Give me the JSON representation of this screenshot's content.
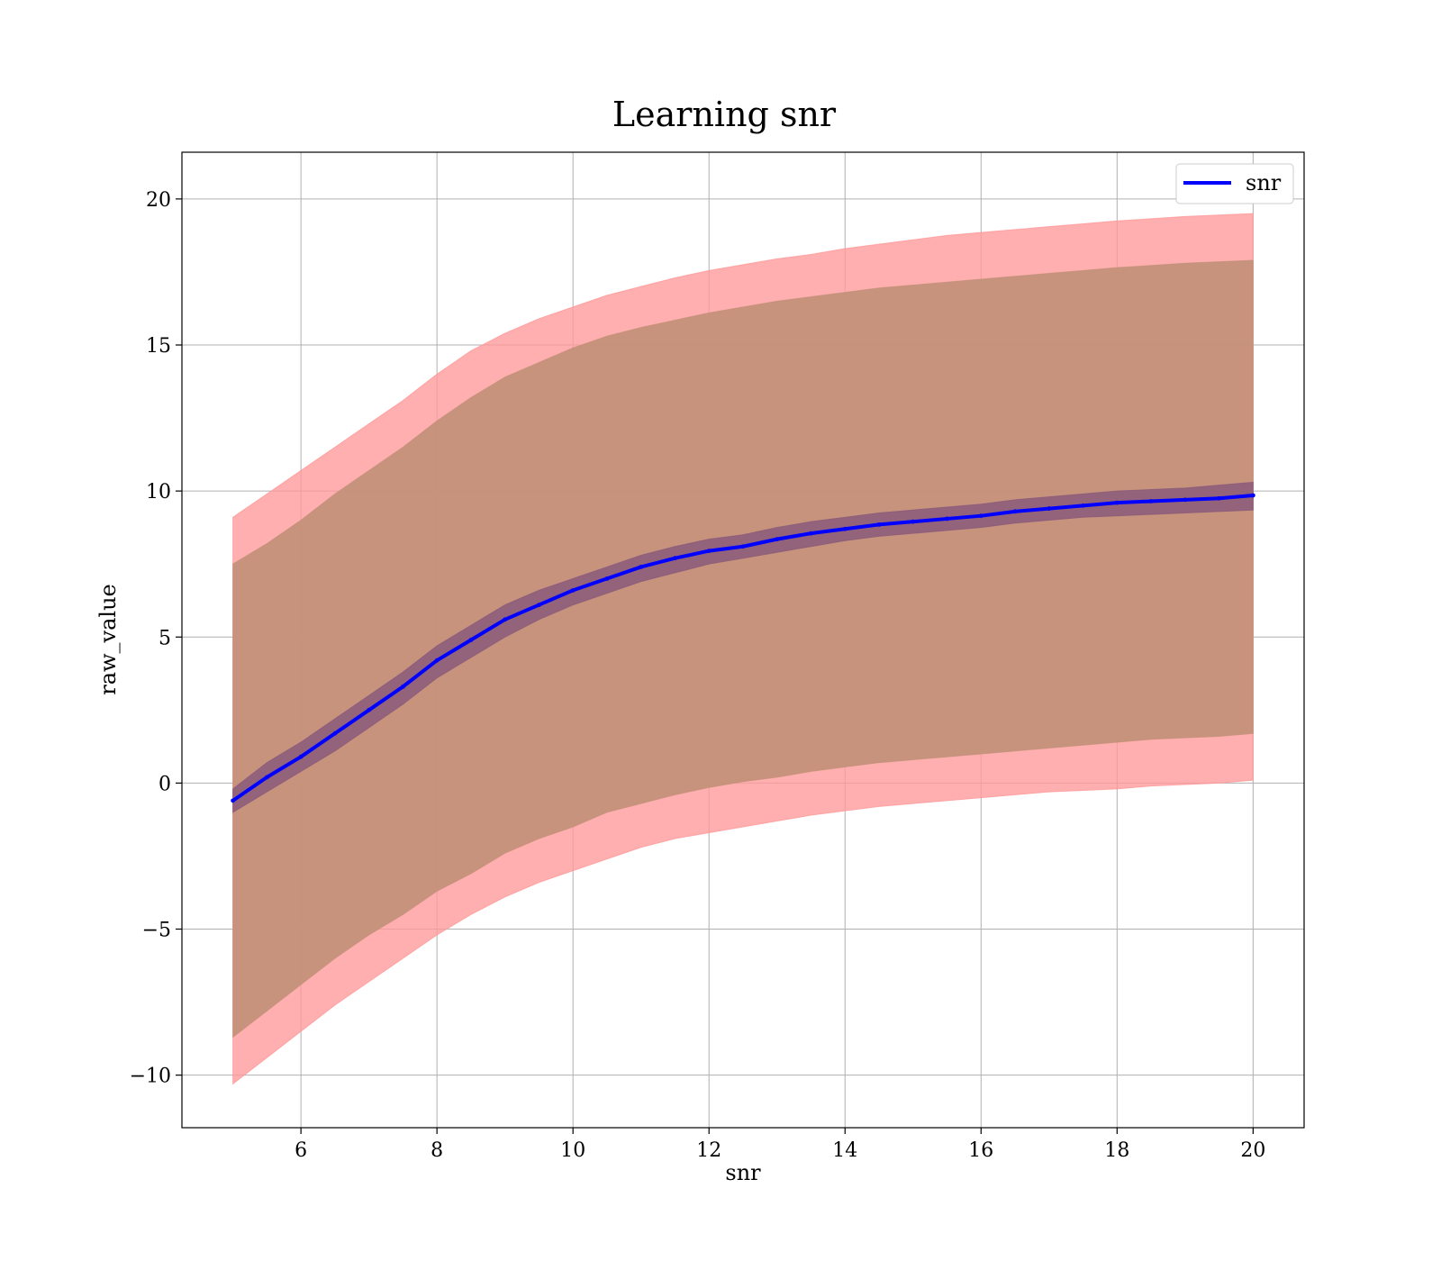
{
  "chart_data": {
    "type": "line",
    "title": "Learning snr",
    "xlabel": "snr",
    "ylabel": "raw_value",
    "xlim": [
      4.25,
      20.75
    ],
    "ylim": [
      -11.8,
      21.6
    ],
    "xticks": [
      6,
      8,
      10,
      12,
      14,
      16,
      18,
      20
    ],
    "xtick_labels": [
      "6",
      "8",
      "10",
      "12",
      "14",
      "16",
      "18",
      "20"
    ],
    "yticks": [
      -10,
      -5,
      0,
      5,
      10,
      15,
      20
    ],
    "ytick_labels": [
      "−10",
      "−5",
      "0",
      "5",
      "10",
      "15",
      "20"
    ],
    "grid": true,
    "legend_position": "top-right",
    "colors": {
      "line": "#0000ff",
      "outer_band": "#ff9999",
      "inner_band": "#c4917a",
      "mean_band": "#8a5a7a"
    },
    "series": [
      {
        "name": "snr",
        "x": [
          5,
          5.5,
          6,
          6.5,
          7,
          7.5,
          8,
          8.5,
          9,
          9.5,
          10,
          10.5,
          11,
          11.5,
          12,
          12.5,
          13,
          13.5,
          14,
          14.5,
          15,
          15.5,
          16,
          16.5,
          17,
          17.5,
          18,
          18.5,
          19,
          19.5,
          20
        ],
        "mean": [
          -0.6,
          0.2,
          0.9,
          1.7,
          2.5,
          3.3,
          4.2,
          4.9,
          5.6,
          6.1,
          6.6,
          7.0,
          7.4,
          7.7,
          7.95,
          8.1,
          8.35,
          8.55,
          8.7,
          8.85,
          8.95,
          9.05,
          9.15,
          9.3,
          9.4,
          9.5,
          9.6,
          9.65,
          9.7,
          9.75,
          9.85
        ],
        "mean_band_lower": [
          -1.0,
          -0.3,
          0.4,
          1.1,
          1.9,
          2.7,
          3.6,
          4.3,
          5.0,
          5.6,
          6.1,
          6.5,
          6.9,
          7.2,
          7.5,
          7.7,
          7.9,
          8.1,
          8.3,
          8.45,
          8.55,
          8.65,
          8.75,
          8.9,
          9.0,
          9.1,
          9.15,
          9.2,
          9.25,
          9.3,
          9.35
        ],
        "mean_band_upper": [
          -0.2,
          0.7,
          1.4,
          2.2,
          3.0,
          3.8,
          4.7,
          5.4,
          6.1,
          6.6,
          7.0,
          7.4,
          7.8,
          8.1,
          8.35,
          8.5,
          8.75,
          8.95,
          9.1,
          9.25,
          9.35,
          9.45,
          9.55,
          9.7,
          9.8,
          9.9,
          10.0,
          10.05,
          10.1,
          10.2,
          10.3
        ],
        "inner_band_lower": [
          -8.7,
          -7.8,
          -6.9,
          -6.0,
          -5.2,
          -4.5,
          -3.7,
          -3.1,
          -2.4,
          -1.9,
          -1.5,
          -1.0,
          -0.7,
          -0.4,
          -0.15,
          0.05,
          0.2,
          0.4,
          0.55,
          0.7,
          0.8,
          0.9,
          1.0,
          1.1,
          1.2,
          1.3,
          1.4,
          1.5,
          1.55,
          1.6,
          1.7
        ],
        "inner_band_upper": [
          7.5,
          8.2,
          9.0,
          9.9,
          10.7,
          11.5,
          12.4,
          13.2,
          13.9,
          14.4,
          14.9,
          15.3,
          15.6,
          15.85,
          16.1,
          16.3,
          16.5,
          16.65,
          16.8,
          16.95,
          17.05,
          17.15,
          17.25,
          17.35,
          17.45,
          17.55,
          17.65,
          17.72,
          17.8,
          17.85,
          17.9
        ],
        "outer_band_lower": [
          -10.3,
          -9.4,
          -8.5,
          -7.6,
          -6.8,
          -6.0,
          -5.2,
          -4.5,
          -3.9,
          -3.4,
          -3.0,
          -2.6,
          -2.2,
          -1.9,
          -1.7,
          -1.5,
          -1.3,
          -1.1,
          -0.95,
          -0.8,
          -0.7,
          -0.6,
          -0.5,
          -0.4,
          -0.3,
          -0.25,
          -0.2,
          -0.1,
          -0.05,
          0.0,
          0.1
        ],
        "outer_band_upper": [
          9.1,
          9.9,
          10.7,
          11.5,
          12.3,
          13.1,
          14.0,
          14.8,
          15.4,
          15.9,
          16.3,
          16.7,
          17.0,
          17.3,
          17.55,
          17.75,
          17.95,
          18.1,
          18.3,
          18.45,
          18.6,
          18.75,
          18.85,
          18.95,
          19.05,
          19.15,
          19.25,
          19.32,
          19.4,
          19.45,
          19.5
        ]
      }
    ]
  }
}
